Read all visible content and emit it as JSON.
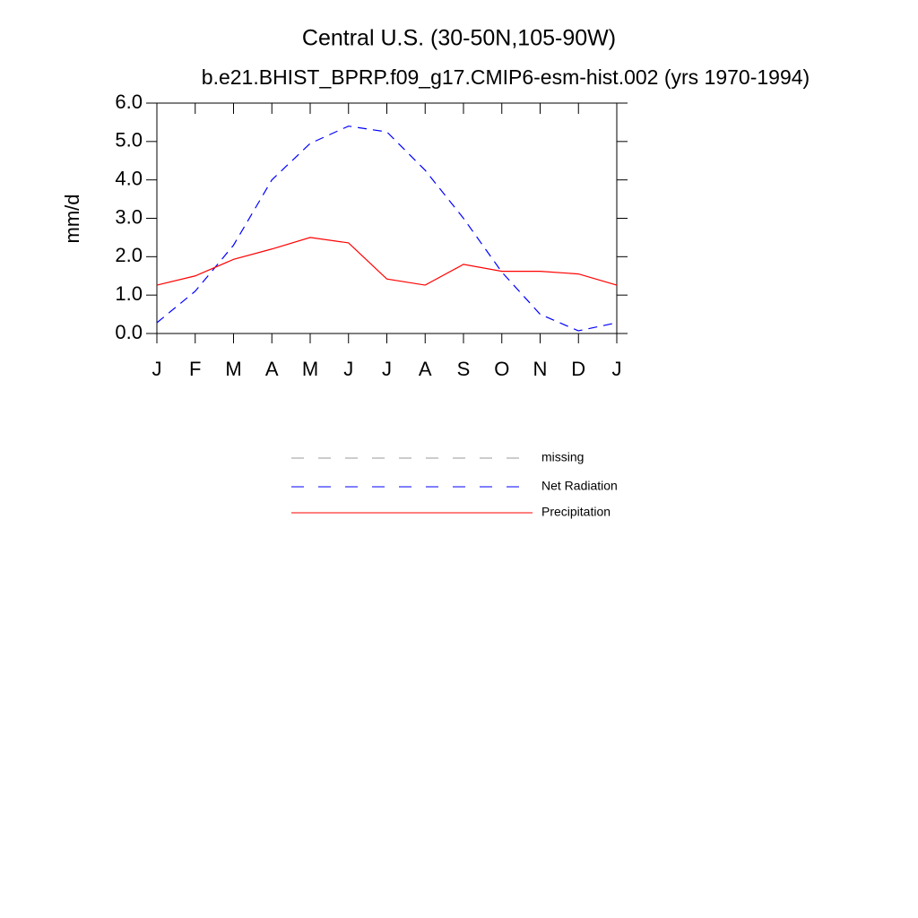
{
  "chart_data": {
    "type": "line",
    "title": "Central U.S. (30-50N,105-90W)",
    "subtitle": "b.e21.BHIST_BPRP.f09_g17.CMIP6-esm-hist.002 (yrs 1970-1994)",
    "y_label": "mm/d",
    "categories": [
      "J",
      "F",
      "M",
      "A",
      "M",
      "J",
      "J",
      "A",
      "S",
      "O",
      "N",
      "D",
      "J"
    ],
    "series": [
      {
        "name": "missing",
        "color": "#999999",
        "dash": true,
        "values": [
          null,
          null,
          null,
          null,
          null,
          null,
          null,
          null,
          null,
          null,
          null,
          null,
          null
        ]
      },
      {
        "name": "Net Radiation",
        "color": "#0000ff",
        "dash": true,
        "values": [
          0.28,
          1.1,
          2.3,
          4.0,
          4.95,
          5.4,
          5.25,
          4.25,
          3.0,
          1.6,
          0.5,
          0.07,
          0.28
        ]
      },
      {
        "name": "Precipitation",
        "color": "#ff0000",
        "dash": false,
        "values": [
          1.26,
          1.5,
          1.93,
          2.2,
          2.5,
          2.36,
          1.42,
          1.26,
          1.8,
          1.62,
          1.62,
          1.55,
          1.26
        ]
      }
    ],
    "ylim": [
      0,
      6
    ],
    "yticks": [
      {
        "value": 0,
        "label": "0.0"
      },
      {
        "value": 1,
        "label": "1.0"
      },
      {
        "value": 2,
        "label": "2.0"
      },
      {
        "value": 3,
        "label": "3.0"
      },
      {
        "value": 4,
        "label": "4.0"
      },
      {
        "value": 5,
        "label": "5.0"
      },
      {
        "value": 6,
        "label": "6.0"
      }
    ],
    "grid": false
  }
}
